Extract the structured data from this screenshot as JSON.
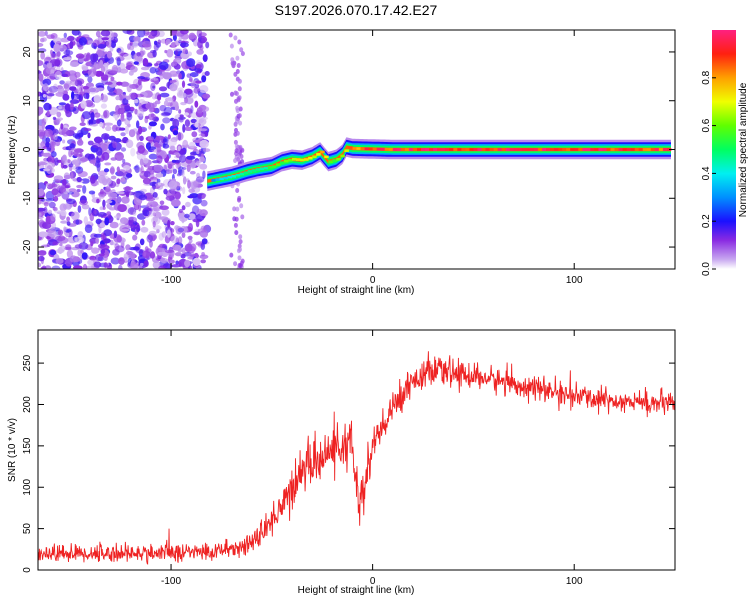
{
  "title": "S197.2026.070.17.42.E27",
  "chart_data": [
    {
      "type": "heatmap",
      "xlabel": "Height of straight line (km)",
      "ylabel": "Frequency (Hz)",
      "xlim": [
        -166,
        150
      ],
      "ylim": [
        -24.5,
        24.5
      ],
      "xticks": [
        -100,
        0,
        100
      ],
      "yticks": [
        -20,
        -10,
        0,
        10,
        20
      ],
      "xtick_labels": [
        "-100",
        "0",
        "100"
      ],
      "ytick_labels": [
        "-20",
        "-10",
        "0",
        "10",
        "20"
      ],
      "colorbar": {
        "label": "Normalized spectral amplitude",
        "range": [
          0,
          1
        ],
        "ticks": [
          "0.0",
          "0.2",
          "0.4",
          "0.6",
          "0.8"
        ],
        "tick_values": [
          0,
          0.2,
          0.4,
          0.6,
          0.8
        ]
      },
      "noise_region": {
        "x_range": [
          -166,
          -82
        ],
        "amplitude": 0.15
      },
      "signal_trace": {
        "x": [
          -82,
          -70,
          -62,
          -57,
          -50,
          -45,
          -40,
          -35,
          -30,
          -26,
          -22,
          -18,
          -15,
          -13,
          -10,
          0,
          10,
          30,
          60,
          100,
          148
        ],
        "y": [
          -6.5,
          -5.5,
          -4.5,
          -4.0,
          -3.5,
          -2.5,
          -2.0,
          -2.2,
          -1.5,
          -0.5,
          -2.5,
          -2.0,
          -1.0,
          0.5,
          0.2,
          0.1,
          0.0,
          0.0,
          0.0,
          0.0,
          0.0
        ],
        "amplitude": [
          0.3,
          0.45,
          0.5,
          0.45,
          0.55,
          0.6,
          0.7,
          0.7,
          0.65,
          0.75,
          0.6,
          0.65,
          0.7,
          0.8,
          0.85,
          0.9,
          0.92,
          0.95,
          0.95,
          0.95,
          0.9
        ]
      }
    },
    {
      "type": "line",
      "xlabel": "Height of straight line (km)",
      "ylabel": "SNR (10 * v/v)",
      "xlim": [
        -166,
        150
      ],
      "ylim": [
        0,
        290
      ],
      "xticks": [
        -100,
        0,
        100
      ],
      "yticks": [
        0,
        50,
        100,
        150,
        200,
        250
      ],
      "xtick_labels": [
        "-100",
        "0",
        "100"
      ],
      "ytick_labels": [
        "0",
        "50",
        "100",
        "150",
        "200",
        "250"
      ],
      "color": "#ee2222",
      "envelope": {
        "x": [
          -166,
          -120,
          -80,
          -65,
          -55,
          -48,
          -44,
          -40,
          -35,
          -30,
          -25,
          -20,
          -15,
          -10,
          -7,
          -4,
          0,
          5,
          10,
          15,
          20,
          30,
          40,
          60,
          80,
          100,
          120,
          150
        ],
        "y": [
          20,
          20,
          22,
          28,
          40,
          70,
          80,
          100,
          120,
          130,
          135,
          145,
          150,
          145,
          80,
          100,
          150,
          170,
          195,
          215,
          230,
          240,
          238,
          230,
          220,
          210,
          205,
          200
        ],
        "noise": [
          10,
          10,
          10,
          11,
          14,
          20,
          24,
          25,
          25,
          25,
          25,
          25,
          25,
          30,
          35,
          30,
          25,
          20,
          18,
          17,
          17,
          16,
          15,
          14,
          13,
          13,
          13,
          13
        ]
      }
    }
  ]
}
